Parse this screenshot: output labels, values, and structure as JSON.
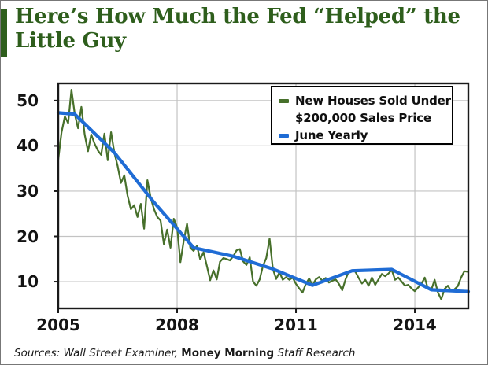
{
  "header": {
    "title_line1": "Here’s How Much the Fed “Helped” the",
    "title_line2": "Little Guy"
  },
  "legend": {
    "item1_line1": "New Houses Sold Under",
    "item1_line2": "$200,000 Sales Price",
    "item2_label": "June Yearly"
  },
  "footer": {
    "sources_italic": "Sources: Wall Street Examiner,",
    "brand_bold": "Money Morning",
    "staff_italic": "Staff Research"
  },
  "colors": {
    "title_green": "#2e5e1c",
    "houses_green": "#47702b",
    "june_blue": "#1f6cd5",
    "grid_gray": "#c3c3c3",
    "axis_black": "#1a1a1a"
  },
  "chart_data": {
    "type": "line",
    "title": "Here’s How Much the Fed “Helped” the Little Guy",
    "xlabel": "",
    "ylabel": "",
    "units": "thousands of new houses",
    "x_range": [
      2005,
      2015.35
    ],
    "y_range": [
      4.1,
      53.8
    ],
    "x_ticks": [
      2005,
      2008,
      2011,
      2014
    ],
    "y_ticks": [
      10,
      20,
      30,
      40,
      50
    ],
    "grid": true,
    "legend_position": "top-right",
    "series": [
      {
        "name": "New Houses Sold Under $200,000 Sales Price",
        "color": "#47702b",
        "frequency": "monthly",
        "start": "2005-01",
        "values": [
          37,
          43,
          46.5,
          45,
          52.4,
          47,
          43.9,
          48.6,
          42.5,
          38.8,
          42.5,
          40.5,
          39,
          38,
          42.7,
          36.8,
          43,
          38.5,
          35.5,
          31.8,
          33.5,
          29,
          26,
          26.9,
          24.3,
          27.2,
          21.7,
          32.4,
          28.5,
          26,
          24.3,
          23.5,
          18.3,
          21.5,
          17.5,
          23.9,
          22,
          14.3,
          19,
          22.8,
          17.5,
          16.8,
          17.9,
          14.9,
          16.5,
          13.5,
          10.3,
          12.5,
          10.5,
          14.4,
          15.2,
          15,
          14.7,
          15.6,
          16.9,
          17.2,
          14.5,
          13.7,
          15.4,
          10,
          9.1,
          10.5,
          13.5,
          15.2,
          19.5,
          12.8,
          10.6,
          12.1,
          10.4,
          11,
          10.4,
          10.9,
          9.5,
          8.5,
          7.6,
          9.5,
          10.7,
          9.2,
          10.5,
          11,
          10.2,
          10.8,
          9.8,
          10.2,
          10.5,
          9.5,
          8.1,
          10.5,
          12.3,
          12.4,
          12.2,
          10.8,
          9.6,
          10.4,
          9.1,
          10.9,
          9.3,
          10.5,
          11.7,
          11.2,
          11.8,
          12.6,
          10.4,
          10.9,
          10,
          9.1,
          9.3,
          8.5,
          7.9,
          8.7,
          9.5,
          10.9,
          8.4,
          8.2,
          10.4,
          7.6,
          6.1,
          8.4,
          9.1,
          7.9,
          8.3,
          9,
          10.9,
          12.3,
          12.2
        ]
      },
      {
        "name": "June Yearly",
        "color": "#1f6cd5",
        "x": [
          2005.0,
          2005.417,
          2006.417,
          2007.417,
          2008.417,
          2009.417,
          2010.417,
          2011.417,
          2012.417,
          2013.417,
          2014.417,
          2015.35
        ],
        "values": [
          47.3,
          47,
          38.5,
          27.5,
          17.5,
          15.6,
          12.8,
          9.2,
          12.4,
          12.7,
          8.2,
          7.8
        ]
      }
    ]
  }
}
